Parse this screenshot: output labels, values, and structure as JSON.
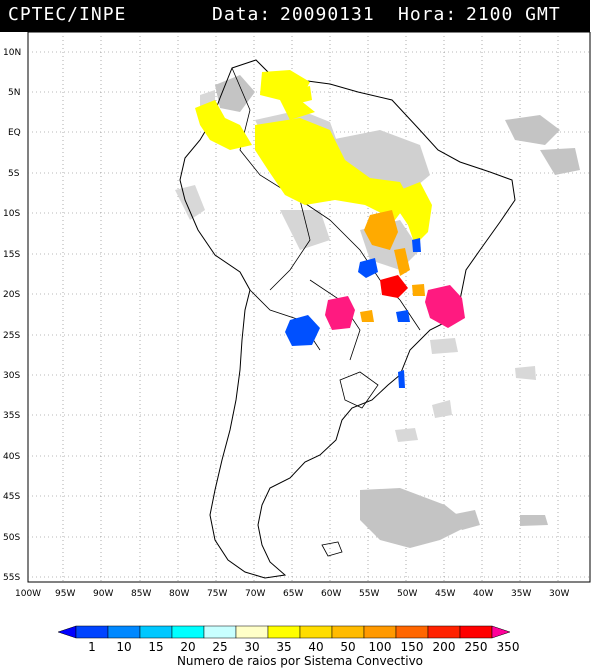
{
  "header": {
    "agency": "CPTEC/INPE",
    "date_label": "Data:",
    "date_value": "20090131",
    "hour_label": "Hora:",
    "hour_value": "2100 GMT"
  },
  "map": {
    "lat_labels": [
      "10N",
      "5N",
      "EQ",
      "5S",
      "10S",
      "15S",
      "20S",
      "25S",
      "30S",
      "35S",
      "40S",
      "45S",
      "50S",
      "55S"
    ],
    "lon_labels": [
      "100W",
      "95W",
      "90W",
      "85W",
      "80W",
      "75W",
      "70W",
      "65W",
      "60W",
      "55W",
      "50W",
      "45W",
      "40W",
      "35W",
      "30W"
    ],
    "colors": {
      "land_outline": "#000000",
      "cloud_gray": "#c0c0c0",
      "yellow": "#ffff00",
      "orange": "#ffaa00",
      "red": "#ff0000",
      "magenta": "#ff1a80",
      "blue": "#0050ff"
    }
  },
  "legend": {
    "title": "Numero de raios por Sistema Convectivo",
    "values": [
      "1",
      "10",
      "15",
      "20",
      "25",
      "30",
      "35",
      "40",
      "50",
      "100",
      "150",
      "200",
      "250",
      "350"
    ],
    "colors": [
      "#0000ff",
      "#0044ff",
      "#0088ff",
      "#00c8ff",
      "#00ffff",
      "#c8ffff",
      "#ffffc8",
      "#ffff00",
      "#ffdd00",
      "#ffbb00",
      "#ff9900",
      "#ff6600",
      "#ff2200",
      "#ff0000",
      "#ff0099"
    ]
  }
}
